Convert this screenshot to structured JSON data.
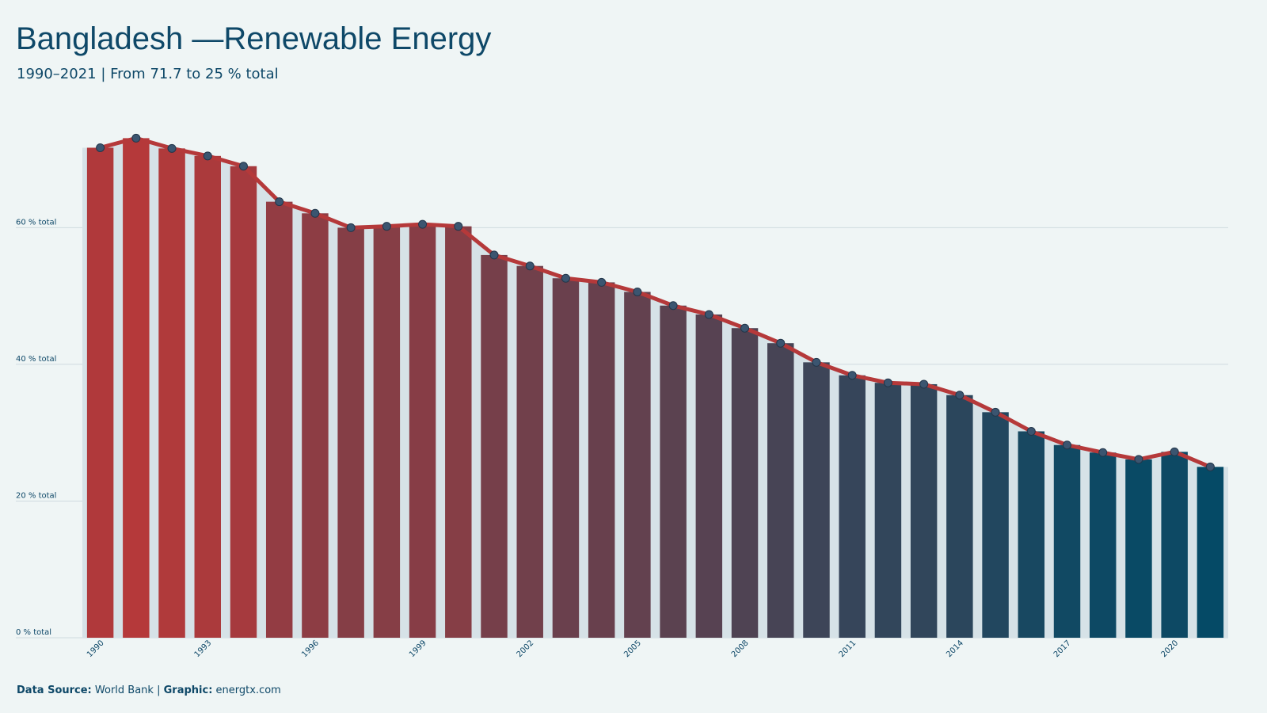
{
  "chart_data": {
    "type": "bar-line",
    "title": "Bangladesh —Renewable Energy",
    "subtitle": "1990–2021 | From 71.7 to 25 % total",
    "categories": [
      "1990",
      null,
      null,
      "1993",
      null,
      null,
      "1996",
      null,
      null,
      "1999",
      null,
      null,
      "2002",
      null,
      null,
      "2005",
      null,
      null,
      "2008",
      null,
      null,
      "2011",
      null,
      null,
      "2014",
      null,
      null,
      "2017",
      null,
      null,
      "2020",
      null
    ],
    "values": [
      71.7,
      73.1,
      71.6,
      70.5,
      69.0,
      63.8,
      62.1,
      60.0,
      60.2,
      60.5,
      60.2,
      56.0,
      54.4,
      52.6,
      52.0,
      50.6,
      48.6,
      47.3,
      45.3,
      43.1,
      40.3,
      38.4,
      37.3,
      37.1,
      35.5,
      33.0,
      30.2,
      28.2,
      27.1,
      26.1,
      27.2,
      25.0
    ],
    "gradient_colors": [
      "#054a66",
      "#b5393a"
    ],
    "line_color": "#b5393a",
    "point_color": "#3b5570",
    "ylim": [
      0,
      75
    ],
    "yticks": [
      {
        "value": 0,
        "label": "0 % total"
      },
      {
        "value": 20,
        "label": "20 % total"
      },
      {
        "value": 40,
        "label": "40 % total"
      },
      {
        "value": 60,
        "label": "60 % total"
      }
    ],
    "grid": true,
    "footer": {
      "source_label": "Data Source:",
      "source": "World Bank",
      "separator": "|",
      "graphic_label": "Graphic:",
      "graphic": "energtx.com"
    }
  }
}
